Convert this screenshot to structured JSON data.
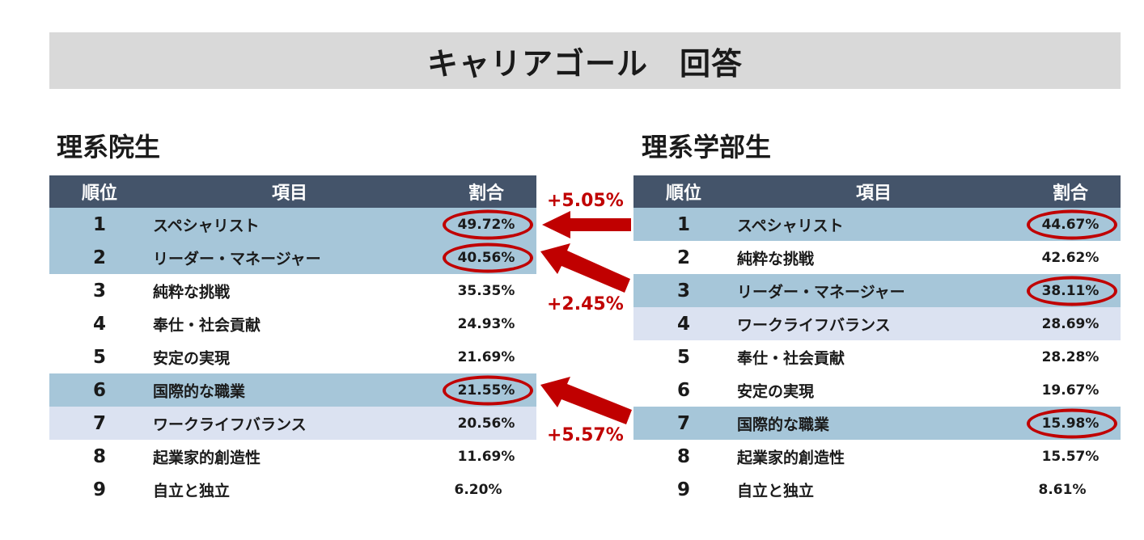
{
  "title": "キャリアゴール　回答",
  "headers": {
    "rank": "順位",
    "item": "項目",
    "ratio": "割合"
  },
  "left": {
    "heading": "理系院生",
    "rows": [
      {
        "rank": "1",
        "item": "スペシャリスト",
        "ratio": "49.72%"
      },
      {
        "rank": "2",
        "item": "リーダー・マネージャー",
        "ratio": "40.56%"
      },
      {
        "rank": "3",
        "item": "純粋な挑戦",
        "ratio": "35.35%"
      },
      {
        "rank": "4",
        "item": "奉仕・社会貢献",
        "ratio": "24.93%"
      },
      {
        "rank": "5",
        "item": "安定の実現",
        "ratio": "21.69%"
      },
      {
        "rank": "6",
        "item": "国際的な職業",
        "ratio": "21.55%"
      },
      {
        "rank": "7",
        "item": "ワークライフバランス",
        "ratio": "20.56%"
      },
      {
        "rank": "8",
        "item": "起業家的創造性",
        "ratio": "11.69%"
      },
      {
        "rank": "9",
        "item": "自立と独立",
        "ratio": "6.20%"
      }
    ]
  },
  "right": {
    "heading": "理系学部生",
    "rows": [
      {
        "rank": "1",
        "item": "スペシャリスト",
        "ratio": "44.67%"
      },
      {
        "rank": "2",
        "item": "純粋な挑戦",
        "ratio": "42.62%"
      },
      {
        "rank": "3",
        "item": "リーダー・マネージャー",
        "ratio": "38.11%"
      },
      {
        "rank": "4",
        "item": "ワークライフバランス",
        "ratio": "28.69%"
      },
      {
        "rank": "5",
        "item": "奉仕・社会貢献",
        "ratio": "28.28%"
      },
      {
        "rank": "6",
        "item": "安定の実現",
        "ratio": "19.67%"
      },
      {
        "rank": "7",
        "item": "国際的な職業",
        "ratio": "15.98%"
      },
      {
        "rank": "8",
        "item": "起業家的創造性",
        "ratio": "15.57%"
      },
      {
        "rank": "9",
        "item": "自立と独立",
        "ratio": "8.61%"
      }
    ]
  },
  "differences": [
    "+5.05%",
    "+2.45%",
    "+5.57%"
  ],
  "colors": {
    "header_bg": "#44546a",
    "highlight_dark": "#a6c6d9",
    "highlight_light": "#dbe2f1",
    "accent_red": "#c00000"
  }
}
